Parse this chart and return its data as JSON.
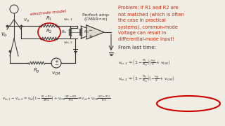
{
  "bg_color": "#f0ede4",
  "problem_text_lines": [
    "Problem: if R1 and R2 are",
    "not matched (which is often",
    "the case in practical",
    "systems), common-mode",
    "voltage can result in",
    "differential-mode input!"
  ],
  "problem_color": "#cc2200",
  "from_last_time": "From last time:",
  "perfect_amp": "Perfect amp\n(CMRR=∞)",
  "electrode_label": "electrode model",
  "circuit_color": "#333333",
  "red_circle_color": "#cc0000",
  "body_color": "#444444"
}
